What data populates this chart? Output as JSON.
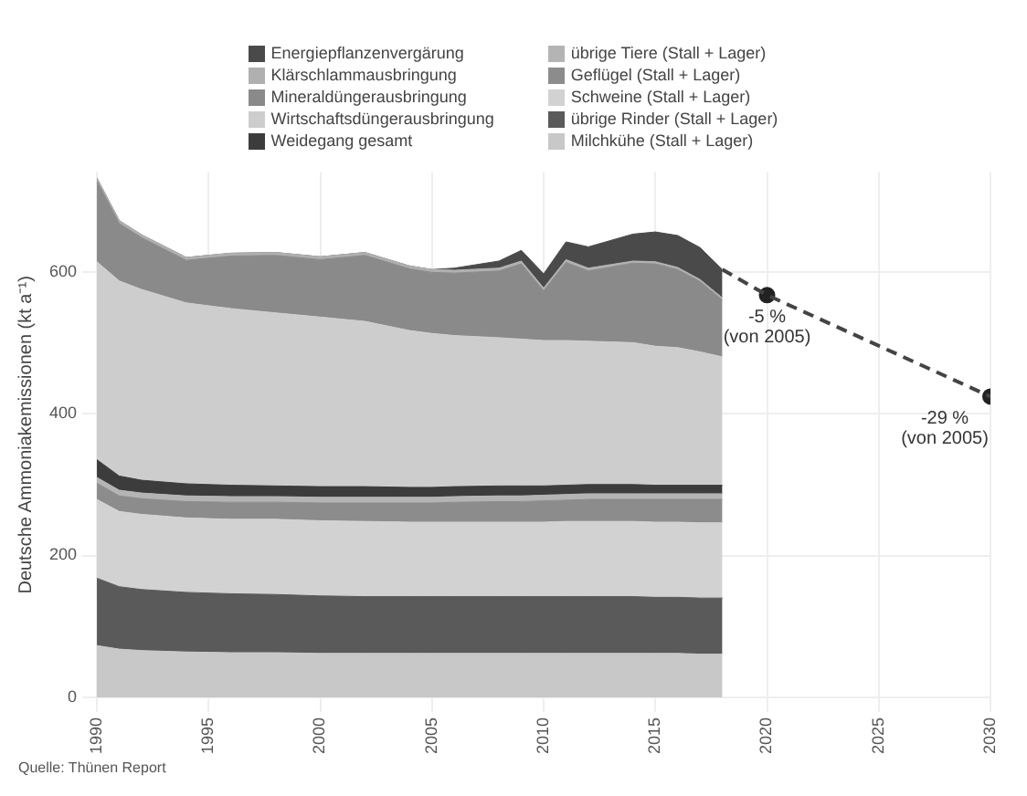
{
  "chart_data": {
    "type": "area",
    "stacked": true,
    "ylabel": "Deutsche Ammoniakemissionen (kt a⁻¹)",
    "x": [
      1990,
      1991,
      1992,
      1994,
      1996,
      1998,
      2000,
      2002,
      2004,
      2005,
      2006,
      2008,
      2009,
      2010,
      2011,
      2012,
      2014,
      2015,
      2016,
      2017,
      2018
    ],
    "series": [
      {
        "name": "Milchkühe (Stall + Lager)",
        "color": "#c8c8c8",
        "values": [
          73,
          68,
          66,
          64,
          63,
          63,
          62,
          62,
          62,
          62,
          62,
          62,
          62,
          62,
          62,
          62,
          62,
          62,
          62,
          61,
          61
        ]
      },
      {
        "name": "übrige Rinder (Stall + Lager)",
        "color": "#5a5a5a",
        "values": [
          95,
          88,
          86,
          84,
          83,
          82,
          81,
          80,
          80,
          80,
          80,
          80,
          80,
          80,
          80,
          80,
          80,
          79,
          79,
          79,
          79
        ]
      },
      {
        "name": "Schweine (Stall + Lager)",
        "color": "#d2d2d2",
        "values": [
          111,
          106,
          106,
          105,
          105,
          106,
          106,
          106,
          105,
          105,
          105,
          105,
          105,
          105,
          106,
          106,
          106,
          106,
          106,
          106,
          106
        ]
      },
      {
        "name": "Geflügel (Stall + Lager)",
        "color": "#8c8c8c",
        "values": [
          23,
          22,
          22,
          23,
          24,
          24,
          25,
          26,
          27,
          27,
          28,
          29,
          29,
          30,
          30,
          31,
          31,
          32,
          32,
          33,
          33
        ]
      },
      {
        "name": "übrige Tiere (Stall + Lager)",
        "color": "#b4b4b4",
        "values": [
          8,
          8,
          8,
          8,
          8,
          8,
          8,
          8,
          8,
          8,
          8,
          8,
          8,
          8,
          8,
          8,
          8,
          8,
          8,
          8,
          8
        ]
      },
      {
        "name": "Weidegang gesamt",
        "color": "#3c3c3c",
        "values": [
          25,
          20,
          18,
          17,
          16,
          15,
          15,
          15,
          14,
          14,
          14,
          14,
          14,
          13,
          13,
          13,
          13,
          12,
          12,
          12,
          12
        ]
      },
      {
        "name": "Wirtschaftsdüngerausbringung",
        "color": "#cdcdcd",
        "values": [
          279,
          275,
          269,
          255,
          249,
          244,
          239,
          233,
          221,
          217,
          213,
          209,
          207,
          205,
          204,
          202,
          200,
          196,
          194,
          188,
          181
        ]
      },
      {
        "name": "Mineraldüngerausbringung",
        "color": "#8a8a8a",
        "values": [
          114,
          81,
          73,
          60,
          74,
          81,
          81,
          93,
          87,
          86,
          88,
          94,
          106,
          70,
          110,
          99,
          112,
          116,
          110,
          99,
          80
        ]
      },
      {
        "name": "Klärschlammausbringung",
        "color": "#b0b0b0",
        "values": [
          4,
          4,
          4,
          4,
          4,
          4,
          4,
          4,
          4,
          4,
          4,
          4,
          4,
          4,
          4,
          4,
          3,
          3,
          3,
          3,
          3
        ]
      },
      {
        "name": "Energiepflanzenvergärung",
        "color": "#4a4a4a",
        "values": [
          0,
          0,
          0,
          0,
          0,
          0,
          0,
          0,
          0,
          0,
          3,
          10,
          15,
          20,
          25,
          30,
          38,
          42,
          45,
          45,
          40
        ]
      },
      {
        "type": "line",
        "x": [
          2018,
          2020,
          2030
        ],
        "color": "#444444",
        "line_style": "dashed",
        "marker": "none",
        "values": [
          603,
          567,
          424
        ]
      },
      {
        "type": "scatter",
        "x": [
          2020,
          2030
        ],
        "color": "#222222",
        "marker": "circle",
        "values": [
          567,
          424
        ]
      }
    ],
    "xlim": [
      1990,
      2030
    ],
    "xticks": [
      1990,
      1995,
      2000,
      2005,
      2010,
      2015,
      2020,
      2025,
      2030
    ],
    "ylim": [
      0,
      740
    ],
    "yticks": [
      0,
      200,
      400,
      600
    ],
    "grid": true,
    "legend": "top",
    "annotations": [
      {
        "text": "-5 %\n(von 2005)",
        "x": 2020,
        "y": 567
      },
      {
        "text": "-29 %\n(von 2005)",
        "x": 2030,
        "y": 424
      },
      "Quelle: Thünen Report"
    ]
  }
}
